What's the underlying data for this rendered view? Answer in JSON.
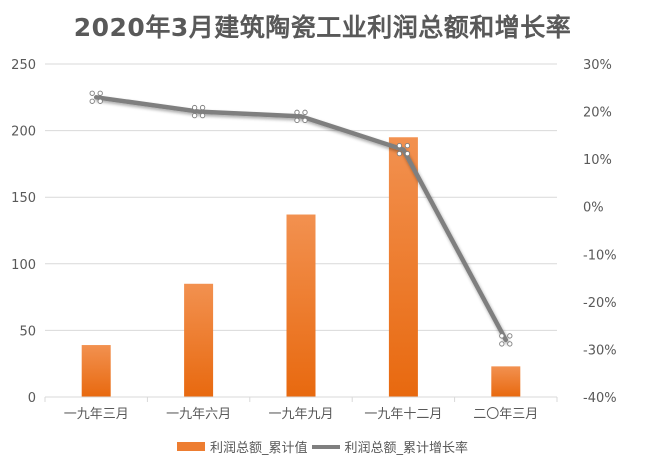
{
  "title": "2020年3月建筑陶瓷工业利润总额和增长率",
  "legend": {
    "bar_label": "利润总额_累计值",
    "line_label": "利润总额_累计增长率"
  },
  "colors": {
    "bar": "#ed7d31",
    "bar_light": "#f28e48",
    "bar_dark": "#e8690f",
    "line": "#7f7f7f",
    "grid": "#d9d9d9",
    "text": "#595959"
  },
  "chart_data": {
    "type": "bar+line",
    "title": "2020年3月建筑陶瓷工业利润总额和增长率",
    "categories": [
      "一九年三月",
      "一九年六月",
      "一九年九月",
      "一九年十二月",
      "二〇年三月"
    ],
    "series": [
      {
        "name": "利润总额_累计值",
        "type": "bar",
        "axis": "left",
        "values": [
          39,
          85,
          137,
          195,
          23
        ]
      },
      {
        "name": "利润总额_累计增长率",
        "type": "line",
        "axis": "right",
        "values": [
          23,
          20,
          19,
          12,
          -28
        ],
        "unit": "%"
      }
    ],
    "left_axis": {
      "ylim": [
        0,
        250
      ],
      "ticks": [
        "0",
        "50",
        "100",
        "150",
        "200",
        "250"
      ]
    },
    "right_axis": {
      "ylim": [
        -40,
        30
      ],
      "ticks": [
        "-40%",
        "-30%",
        "-20%",
        "-10%",
        "0%",
        "10%",
        "20%",
        "30%"
      ]
    },
    "grid": true,
    "legend_position": "bottom"
  }
}
